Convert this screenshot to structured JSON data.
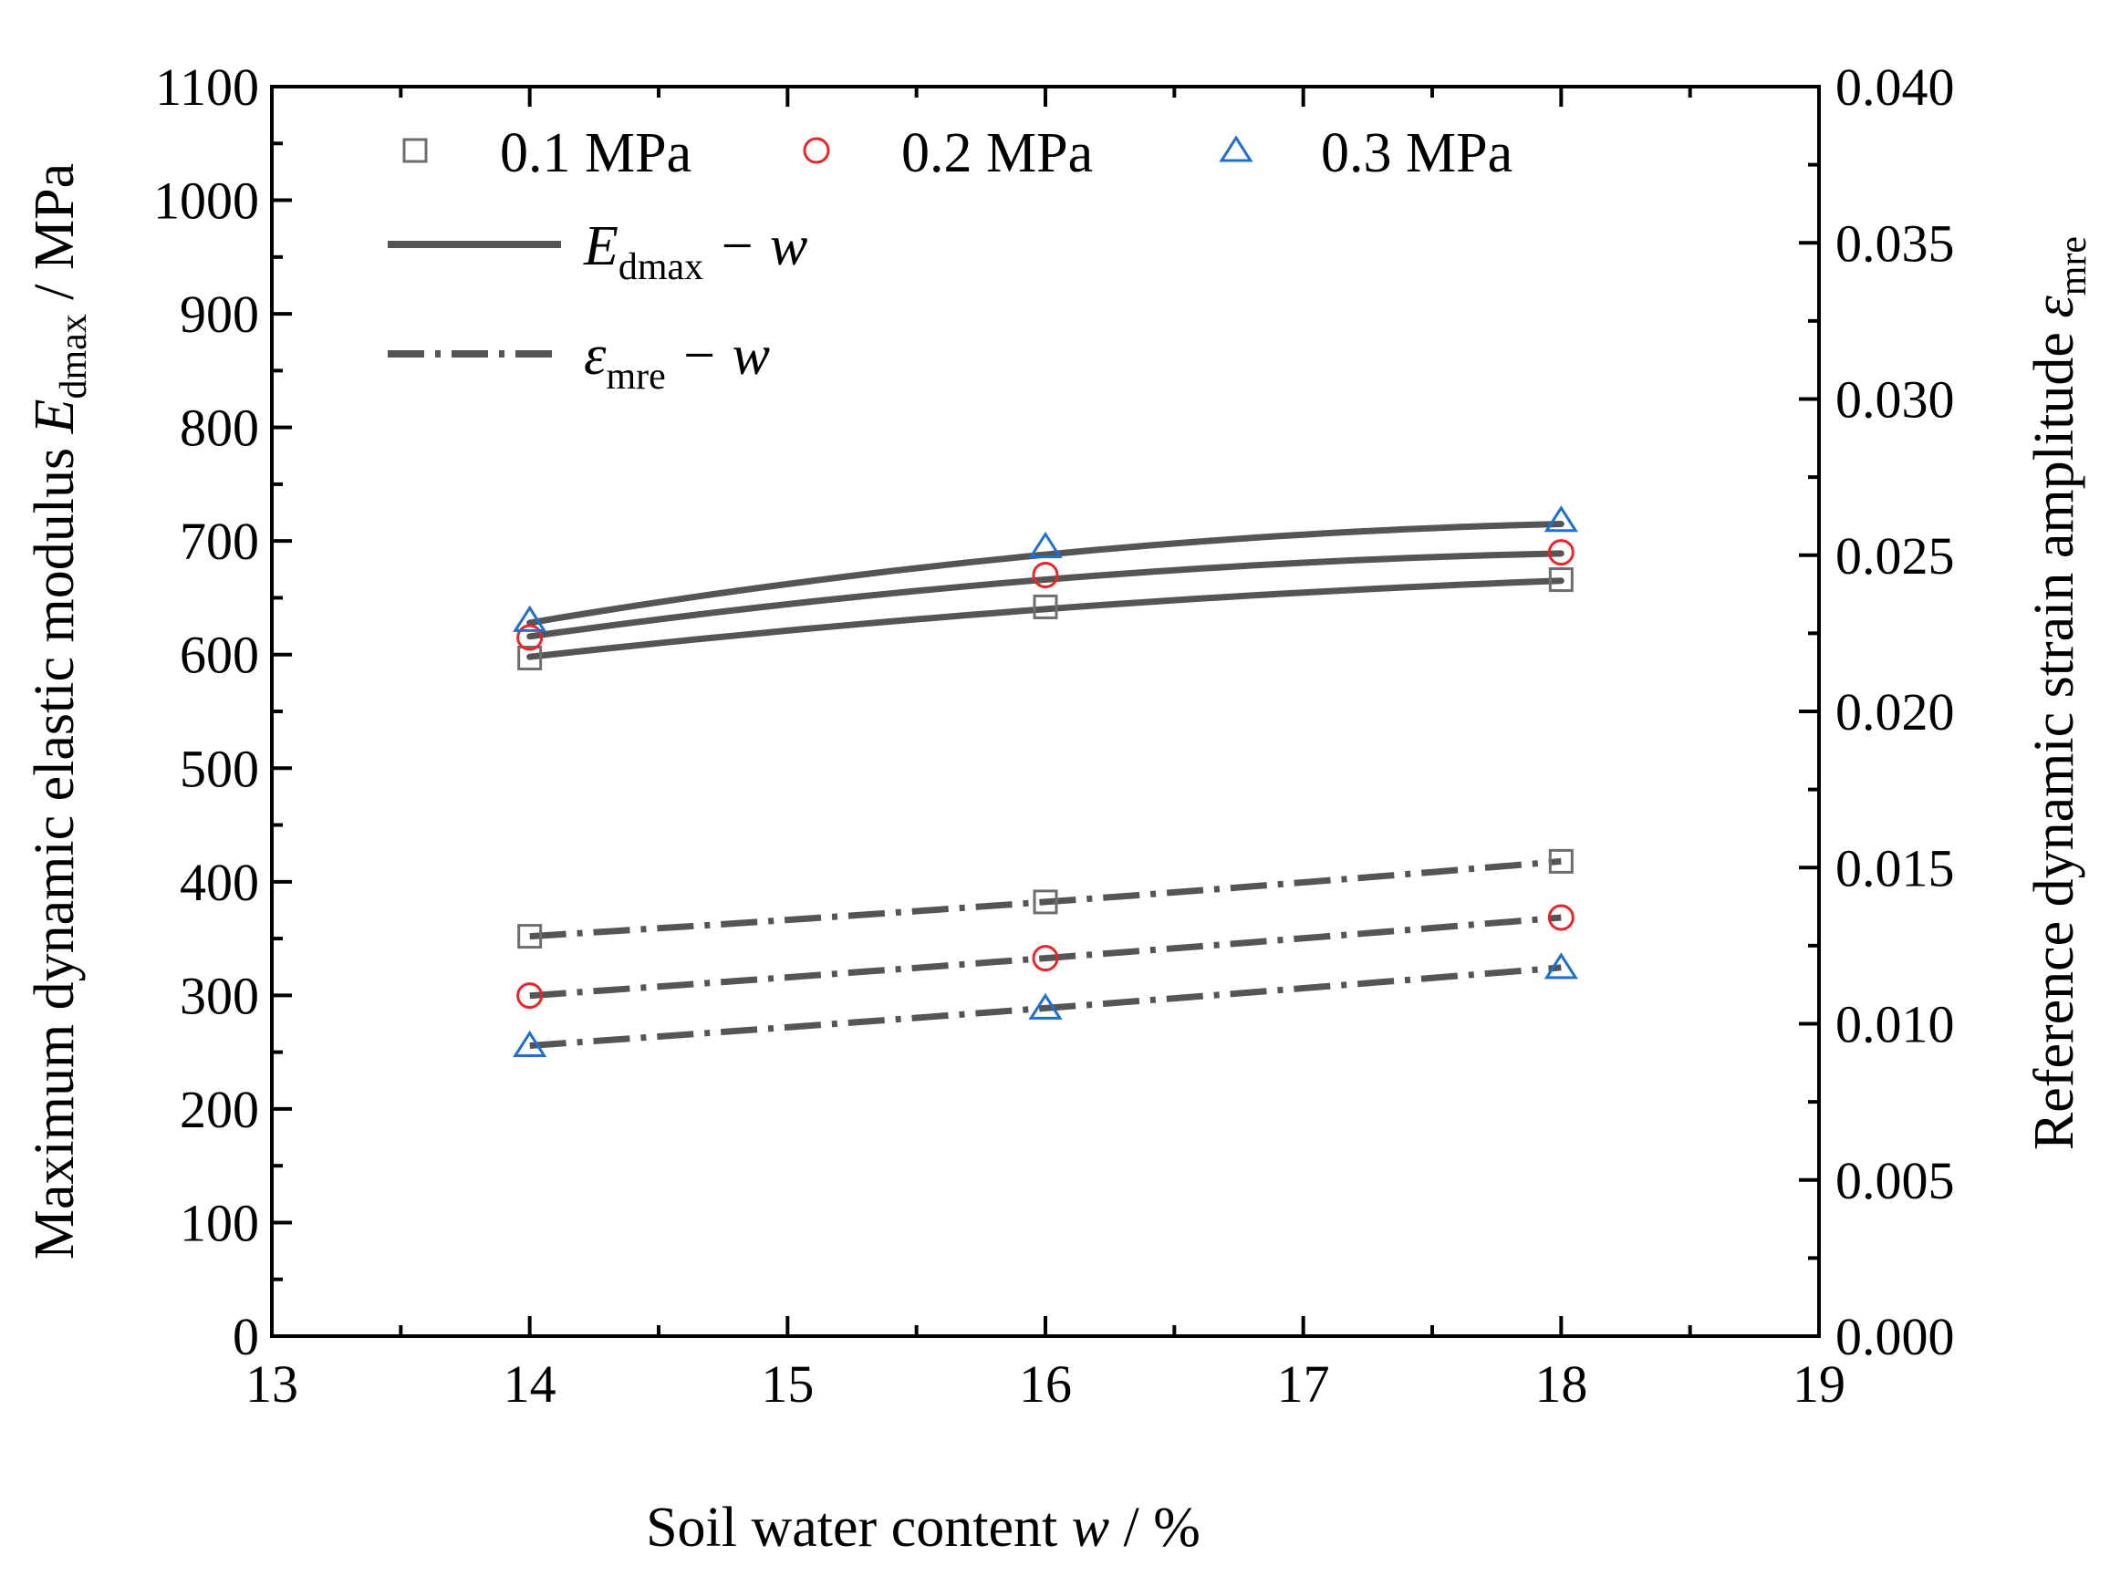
{
  "chart_data": {
    "type": "scatter",
    "title": "",
    "xlabel": {
      "prefix": "Soil water content ",
      "var": "w",
      "suffix": " / %"
    },
    "ylabel_left": {
      "prefix": "Maximum dynamic elastic modulus ",
      "var": "E",
      "sub": "dmax",
      "suffix": " / MPa"
    },
    "ylabel_right": {
      "prefix": "Reference dynamic strain amplitude ",
      "var": "ε",
      "sub": "mre"
    },
    "xlim": [
      13,
      19
    ],
    "ylim_left": [
      0,
      1100
    ],
    "ylim_right": [
      0,
      0.04
    ],
    "x_ticks": [
      "13",
      "14",
      "15",
      "16",
      "17",
      "18",
      "19"
    ],
    "y_left_ticks": [
      "0",
      "100",
      "200",
      "300",
      "400",
      "500",
      "600",
      "700",
      "800",
      "900",
      "1000",
      "1100"
    ],
    "y_right_ticks": [
      "0.000",
      "0.005",
      "0.010",
      "0.015",
      "0.020",
      "0.025",
      "0.030",
      "0.035",
      "0.040"
    ],
    "x": [
      14,
      16,
      18
    ],
    "series": [
      {
        "name": "0.1 MPa",
        "marker": "square",
        "color": "#6e6e6e",
        "Edmax": [
          597,
          642,
          666
        ],
        "Edmax_fit": [
          598,
          640,
          665
        ],
        "emre": [
          0.0128,
          0.0139,
          0.0152
        ],
        "emre_fit": [
          0.0128,
          0.0139,
          0.0152
        ]
      },
      {
        "name": "0.2 MPa",
        "marker": "circle",
        "color": "#e8262a",
        "Edmax": [
          615,
          670,
          690
        ],
        "Edmax_fit": [
          616,
          666,
          689
        ],
        "emre": [
          0.0109,
          0.0121,
          0.0134
        ],
        "emre_fit": [
          0.0109,
          0.0121,
          0.0134
        ]
      },
      {
        "name": "0.3 MPa",
        "marker": "triangle",
        "color": "#1f6fd1",
        "Edmax": [
          630,
          695,
          718
        ],
        "Edmax_fit": [
          628,
          688,
          715
        ],
        "emre": [
          0.0093,
          0.0105,
          0.0118
        ],
        "emre_fit": [
          0.0093,
          0.0105,
          0.0118
        ]
      }
    ],
    "fit_legend": [
      {
        "style": "solid",
        "var": "E",
        "sub": "dmax",
        "rest": " − w"
      },
      {
        "style": "dashdot",
        "var": "ε",
        "sub": "mre",
        "rest": " − w"
      }
    ],
    "fit_color": "#555555"
  }
}
